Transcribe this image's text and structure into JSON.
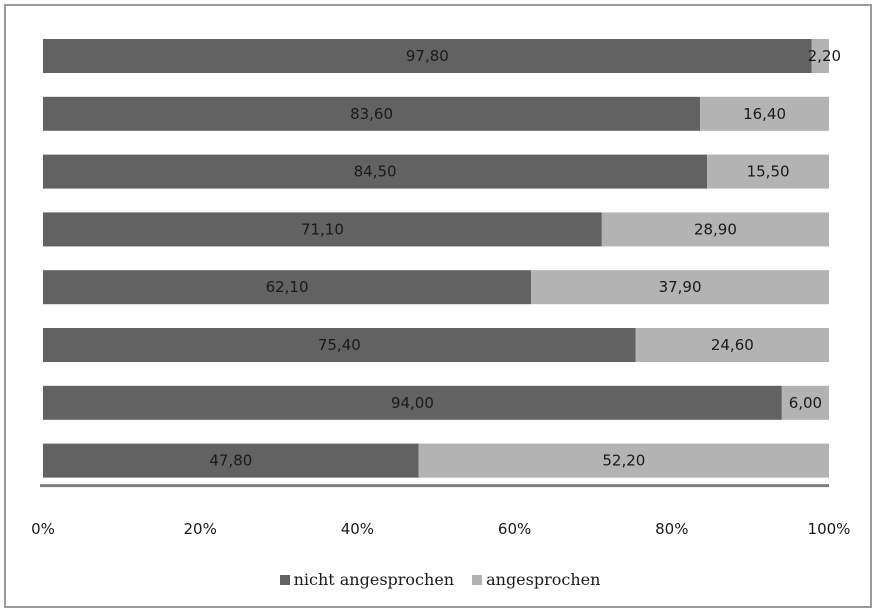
{
  "chart_data": {
    "type": "bar",
    "orientation": "horizontal",
    "stacked": true,
    "percent": true,
    "categories": [
      "",
      "",
      "",
      "",
      "",
      "",
      "",
      ""
    ],
    "series": [
      {
        "name": "nicht angesprochen",
        "color": "#626262",
        "values": [
          97.8,
          83.6,
          84.5,
          71.1,
          62.1,
          75.4,
          94.0,
          47.8
        ],
        "labels": [
          "97,80",
          "83,60",
          "84,50",
          "71,10",
          "62,10",
          "75,40",
          "94,00",
          "47,80"
        ]
      },
      {
        "name": "angesprochen",
        "color": "#b3b3b3",
        "values": [
          2.2,
          16.4,
          15.5,
          28.9,
          37.9,
          24.6,
          6.0,
          52.2
        ],
        "labels": [
          "2,20",
          "16,40",
          "15,50",
          "28,90",
          "37,90",
          "24,60",
          "6,00",
          "52,20"
        ]
      }
    ],
    "xlim": [
      0,
      100
    ],
    "xticks": [
      "0%",
      "20%",
      "40%",
      "60%",
      "80%",
      "100%"
    ],
    "grid": false,
    "legend_position": "bottom"
  }
}
